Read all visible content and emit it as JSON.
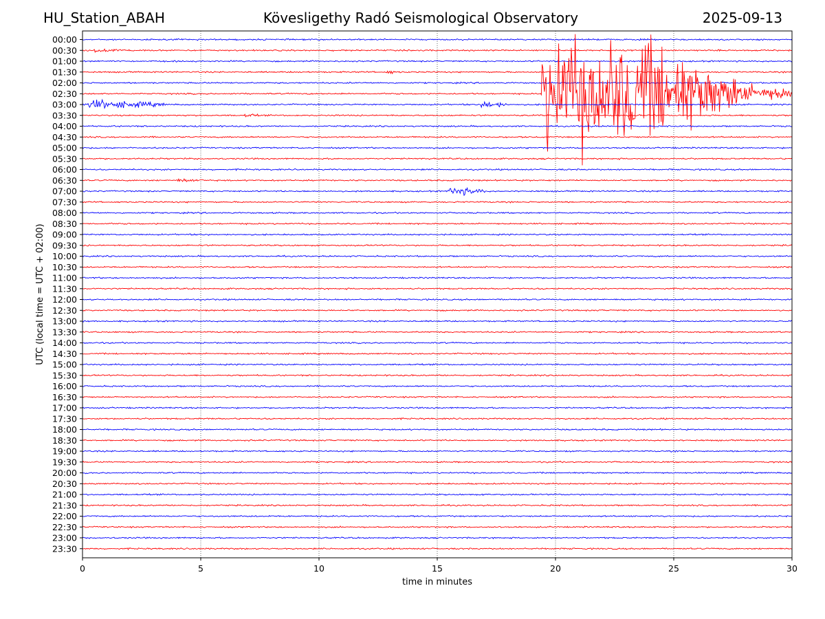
{
  "header": {
    "station": "HU_Station_ABAH",
    "title": "Kövesligethy Radó Seismological Observatory",
    "date": "2025-09-13"
  },
  "chart_data": {
    "type": "line",
    "title": "Kövesligethy Radó Seismological Observatory",
    "xlabel": "time in minutes",
    "ylabel": "UTC (local time = UTC + 02:00)",
    "xlim": [
      0,
      30
    ],
    "x_ticks": [
      0,
      5,
      10,
      15,
      20,
      25,
      30
    ],
    "x_grid": true,
    "row_labels": [
      "00:00",
      "00:30",
      "01:00",
      "01:30",
      "02:00",
      "02:30",
      "03:00",
      "03:30",
      "04:00",
      "04:30",
      "05:00",
      "05:30",
      "06:00",
      "06:30",
      "07:00",
      "07:30",
      "08:00",
      "08:30",
      "09:00",
      "09:30",
      "10:00",
      "10:30",
      "11:00",
      "11:30",
      "12:00",
      "12:30",
      "13:00",
      "13:30",
      "14:00",
      "14:30",
      "15:00",
      "15:30",
      "16:00",
      "16:30",
      "17:00",
      "17:30",
      "18:00",
      "18:30",
      "19:00",
      "19:30",
      "20:00",
      "20:30",
      "21:00",
      "21:30",
      "22:00",
      "22:30",
      "23:00",
      "23:30"
    ],
    "trace_colors": [
      "#0000ff",
      "#ff0000"
    ],
    "events": [
      {
        "row": "00:30",
        "start_min": 0.3,
        "end_min": 2.5,
        "amplitude": "small"
      },
      {
        "row": "01:30",
        "start_min": 12.8,
        "end_min": 13.6,
        "amplitude": "small"
      },
      {
        "row": "03:00",
        "start_min": 0.0,
        "end_min": 3.5,
        "amplitude": "medium"
      },
      {
        "row": "03:00",
        "start_min": 16.8,
        "end_min": 17.9,
        "amplitude": "medium"
      },
      {
        "row": "03:30",
        "start_min": 6.8,
        "end_min": 7.6,
        "amplitude": "small"
      },
      {
        "row": "06:30",
        "start_min": 3.9,
        "end_min": 5.5,
        "amplitude": "small"
      },
      {
        "row": "07:00",
        "start_min": 15.4,
        "end_min": 17.0,
        "amplitude": "medium"
      },
      {
        "row": "02:30",
        "start_min": 19.4,
        "end_min": 30,
        "amplitude": "large",
        "note": "large earthquake arrival"
      }
    ]
  }
}
